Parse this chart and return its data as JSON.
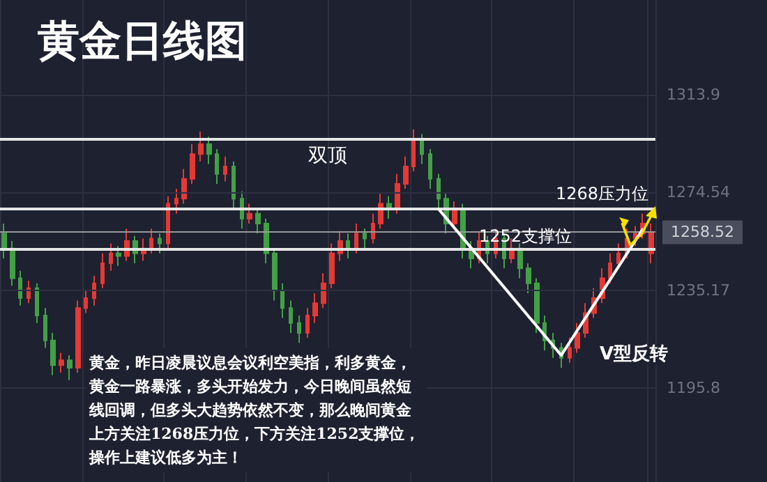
{
  "chart_data": {
    "type": "candlestick",
    "title": "黄金日线图",
    "categories": [
      null,
      null,
      null,
      null,
      null,
      null,
      null,
      null,
      null,
      null,
      null,
      null,
      null,
      null,
      null,
      null,
      null,
      null,
      null,
      null,
      null,
      null,
      null,
      null,
      null,
      null,
      null,
      null,
      null,
      null,
      null,
      null,
      null,
      null,
      null,
      null,
      null,
      null,
      null,
      null,
      null,
      null,
      null,
      null,
      null,
      null,
      null,
      null,
      null,
      null,
      null,
      null,
      null,
      null,
      null,
      null,
      null,
      null,
      null,
      null,
      null,
      null,
      null,
      null,
      null,
      null,
      null,
      null,
      null,
      null,
      null,
      null,
      null,
      null,
      null,
      null,
      null,
      null,
      null,
      null
    ],
    "series": [
      {
        "type": "candlestick",
        "ohlc": [
          [
            1258,
            1262,
            1248,
            1252
          ],
          [
            1252,
            1255,
            1237,
            1240
          ],
          [
            1240,
            1243,
            1229,
            1232
          ],
          [
            1232,
            1239,
            1230,
            1236
          ],
          [
            1236,
            1238,
            1222,
            1225
          ],
          [
            1225,
            1228,
            1212,
            1215
          ],
          [
            1215,
            1218,
            1201,
            1205
          ],
          [
            1205,
            1210,
            1202,
            1207
          ],
          [
            1207,
            1209,
            1199,
            1204
          ],
          [
            1204,
            1231,
            1202,
            1228
          ],
          [
            1228,
            1235,
            1226,
            1232
          ],
          [
            1232,
            1241,
            1229,
            1238
          ],
          [
            1238,
            1250,
            1236,
            1246
          ],
          [
            1246,
            1254,
            1243,
            1250
          ],
          [
            1250,
            1253,
            1245,
            1249
          ],
          [
            1249,
            1260,
            1247,
            1255
          ],
          [
            1255,
            1257,
            1246,
            1250
          ],
          [
            1250,
            1256,
            1247,
            1252
          ],
          [
            1252,
            1260,
            1250,
            1256
          ],
          [
            1256,
            1258,
            1250,
            1254
          ],
          [
            1254,
            1273,
            1252,
            1270
          ],
          [
            1270,
            1276,
            1266,
            1272
          ],
          [
            1272,
            1284,
            1270,
            1280
          ],
          [
            1280,
            1294,
            1278,
            1290
          ],
          [
            1290,
            1299,
            1287,
            1294
          ],
          [
            1294,
            1297,
            1286,
            1290
          ],
          [
            1290,
            1292,
            1278,
            1282
          ],
          [
            1282,
            1289,
            1279,
            1285
          ],
          [
            1285,
            1287,
            1268,
            1272
          ],
          [
            1272,
            1275,
            1260,
            1264
          ],
          [
            1264,
            1270,
            1262,
            1266
          ],
          [
            1266,
            1268,
            1258,
            1262
          ],
          [
            1262,
            1264,
            1246,
            1250
          ],
          [
            1250,
            1252,
            1231,
            1235
          ],
          [
            1235,
            1238,
            1224,
            1228
          ],
          [
            1228,
            1231,
            1218,
            1222
          ],
          [
            1222,
            1225,
            1214,
            1218
          ],
          [
            1218,
            1228,
            1216,
            1225
          ],
          [
            1225,
            1234,
            1222,
            1230
          ],
          [
            1230,
            1242,
            1228,
            1238
          ],
          [
            1238,
            1254,
            1236,
            1250
          ],
          [
            1250,
            1259,
            1247,
            1255
          ],
          [
            1255,
            1258,
            1248,
            1252
          ],
          [
            1252,
            1262,
            1250,
            1258
          ],
          [
            1258,
            1260,
            1252,
            1256
          ],
          [
            1256,
            1266,
            1254,
            1262
          ],
          [
            1262,
            1274,
            1260,
            1270
          ],
          [
            1270,
            1273,
            1264,
            1268
          ],
          [
            1268,
            1282,
            1266,
            1278
          ],
          [
            1278,
            1289,
            1276,
            1285
          ],
          [
            1285,
            1300,
            1283,
            1296
          ],
          [
            1296,
            1298,
            1286,
            1290
          ],
          [
            1290,
            1292,
            1276,
            1280
          ],
          [
            1280,
            1282,
            1268,
            1272
          ],
          [
            1272,
            1274,
            1258,
            1262
          ],
          [
            1262,
            1271,
            1260,
            1268
          ],
          [
            1268,
            1270,
            1248,
            1252
          ],
          [
            1252,
            1255,
            1244,
            1248
          ],
          [
            1248,
            1259,
            1246,
            1255
          ],
          [
            1255,
            1257,
            1246,
            1250
          ],
          [
            1250,
            1260,
            1248,
            1256
          ],
          [
            1256,
            1258,
            1244,
            1248
          ],
          [
            1248,
            1256,
            1246,
            1252
          ],
          [
            1252,
            1254,
            1240,
            1244
          ],
          [
            1244,
            1246,
            1234,
            1238
          ],
          [
            1238,
            1240,
            1218,
            1222
          ],
          [
            1222,
            1225,
            1211,
            1215
          ],
          [
            1215,
            1218,
            1208,
            1212
          ],
          [
            1212,
            1214,
            1204,
            1208
          ],
          [
            1208,
            1216,
            1206,
            1212
          ],
          [
            1212,
            1222,
            1210,
            1218
          ],
          [
            1218,
            1230,
            1216,
            1226
          ],
          [
            1226,
            1236,
            1224,
            1232
          ],
          [
            1232,
            1244,
            1230,
            1240
          ],
          [
            1240,
            1250,
            1238,
            1246
          ],
          [
            1246,
            1254,
            1244,
            1250
          ],
          [
            1250,
            1260,
            1248,
            1256
          ],
          [
            1256,
            1261,
            1253,
            1258
          ],
          [
            1258,
            1266,
            1256,
            1262
          ],
          [
            1250,
            1262,
            1246,
            1258.52
          ]
        ],
        "colors": [
          "#43a047",
          "#43a047",
          "#43a047",
          "#e53935",
          "#43a047",
          "#43a047",
          "#43a047",
          "#e53935",
          "#43a047",
          "#e53935",
          "#e53935",
          "#e53935",
          "#e53935",
          "#e53935",
          "#43a047",
          "#e53935",
          "#43a047",
          "#e53935",
          "#e53935",
          "#43a047",
          "#e53935",
          "#e53935",
          "#e53935",
          "#e53935",
          "#e53935",
          "#43a047",
          "#43a047",
          "#e53935",
          "#43a047",
          "#43a047",
          "#e53935",
          "#43a047",
          "#43a047",
          "#43a047",
          "#43a047",
          "#43a047",
          "#43a047",
          "#e53935",
          "#e53935",
          "#e53935",
          "#e53935",
          "#e53935",
          "#43a047",
          "#e53935",
          "#43a047",
          "#e53935",
          "#e53935",
          "#43a047",
          "#e53935",
          "#e53935",
          "#e53935",
          "#43a047",
          "#43a047",
          "#43a047",
          "#43a047",
          "#e53935",
          "#43a047",
          "#43a047",
          "#e53935",
          "#43a047",
          "#e53935",
          "#43a047",
          "#e53935",
          "#43a047",
          "#43a047",
          "#43a047",
          "#43a047",
          "#43a047",
          "#43a047",
          "#e53935",
          "#e53935",
          "#e53935",
          "#e53935",
          "#e53935",
          "#e53935",
          "#e53935",
          "#e53935",
          "#e53935",
          "#e53935",
          "#e53935"
        ]
      },
      {
        "type": "line",
        "color": "#ffffff",
        "values": [
          null,
          null,
          null,
          null,
          null,
          null,
          null,
          null,
          null,
          null,
          null,
          null,
          null,
          null,
          null,
          null,
          null,
          null,
          null,
          null,
          null,
          null,
          null,
          null,
          null,
          null,
          null,
          null,
          null,
          null,
          null,
          null,
          null,
          null,
          null,
          null,
          null,
          null,
          null,
          null,
          null,
          null,
          null,
          null,
          null,
          null,
          null,
          null,
          null,
          null,
          null,
          null,
          null,
          1268,
          null,
          null,
          null,
          null,
          null,
          null,
          null,
          null,
          null,
          null,
          null,
          null,
          null,
          null,
          1209,
          null,
          null,
          null,
          null,
          null,
          null,
          null,
          null,
          null,
          1260,
          null
        ]
      }
    ],
    "ylim": [
      1158,
      1352
    ],
    "yticks": [
      1195.8,
      1235.17,
      1274.54,
      1313.9
    ],
    "grid": true,
    "tick_labels": "y",
    "ref_lines": [
      {
        "axis": "y",
        "value": 1296,
        "label": "双顶",
        "color": "#e6e6e6"
      },
      {
        "axis": "y",
        "value": 1268,
        "label": "1268压力位",
        "color": "#e6e6e6"
      },
      {
        "axis": "y",
        "value": 1252,
        "label": "1252支撑位",
        "color": "#e6e6e6"
      },
      {
        "axis": "y",
        "value": 1258.52,
        "label": "1258.52",
        "color": "#9a9a9a"
      }
    ],
    "annotations": [
      "V型反转",
      "黄金，昨日凌晨议息会议利空美指，利多黄金，黄金一路暴涨，多头开始发力，今日晚间虽然短线回调，但多头大趋势依然不变，那么晚间黄金上方关注1268压力位，下方关注1252支撑位，操作上建议低多为主！"
    ]
  }
}
